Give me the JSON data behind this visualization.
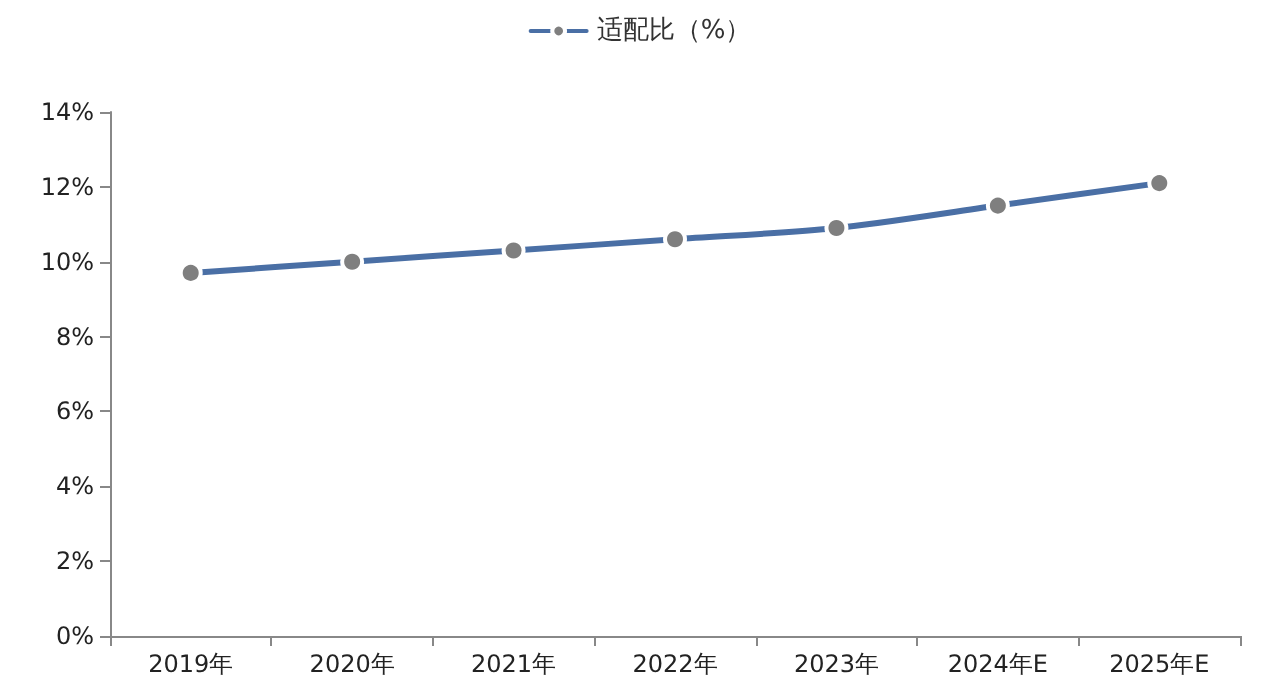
{
  "chart_data": {
    "type": "line",
    "categories": [
      "2019年",
      "2020年",
      "2021年",
      "2022年",
      "2023年",
      "2024年E",
      "2025年E"
    ],
    "series": [
      {
        "name": "适配比（%）",
        "color": "#4a6fa5",
        "values": [
          9.7,
          10.0,
          10.3,
          10.6,
          10.9,
          11.5,
          12.1
        ]
      }
    ],
    "ylim": [
      0,
      14
    ],
    "yticks": [
      {
        "value": 0,
        "label": "0%"
      },
      {
        "value": 2,
        "label": "2%"
      },
      {
        "value": 4,
        "label": "4%"
      },
      {
        "value": 6,
        "label": "6%"
      },
      {
        "value": 8,
        "label": "8%"
      },
      {
        "value": 10,
        "label": "10%"
      },
      {
        "value": 12,
        "label": "12%"
      },
      {
        "value": 14,
        "label": "14%"
      }
    ],
    "grid": false,
    "legend": "top",
    "marker": "circle",
    "line_style": "solid"
  }
}
